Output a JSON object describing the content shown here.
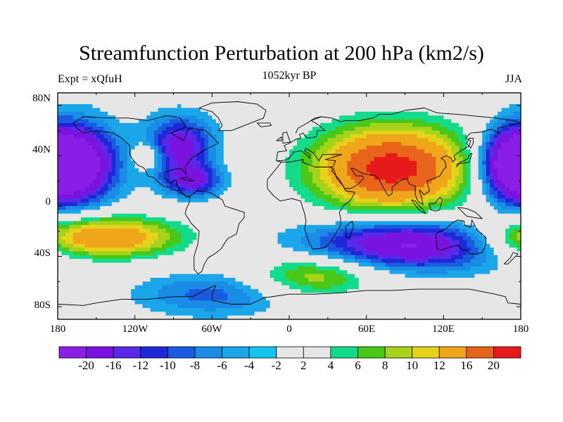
{
  "header": {
    "title": "Streamfunction Perturbation at 200 hPa (km2/s)",
    "left_label": "Expt = xQfuH",
    "center_label": "1052kyr BP",
    "right_label": "JJA"
  },
  "axes": {
    "lat_labels": [
      "80N",
      "40N",
      "0",
      "40S",
      "80S"
    ],
    "lat_values": [
      80,
      40,
      0,
      -40,
      -80
    ],
    "lon_labels": [
      "180",
      "120W",
      "60W",
      "0",
      "60E",
      "120E",
      "180"
    ],
    "lon_values": [
      -180,
      -120,
      -60,
      0,
      60,
      120,
      180
    ]
  },
  "colorbar": {
    "labels": [
      "-20",
      "-16",
      "-12",
      "-10",
      "-8",
      "-6",
      "-4",
      "-2",
      "2",
      "4",
      "6",
      "8",
      "10",
      "12",
      "16",
      "20"
    ],
    "colors": [
      "#8a1ee6",
      "#7a12e0",
      "#5a28e8",
      "#1e28d8",
      "#1a5ae0",
      "#1a8ce6",
      "#1aa6e8",
      "#12c4ee",
      "#e6e6e6",
      "#12dc8c",
      "#4ac81a",
      "#a6d21a",
      "#e6d21a",
      "#f0a61a",
      "#e8641a",
      "#e61a1a"
    ]
  },
  "chart_data": {
    "type": "heatmap",
    "title": "Streamfunction Perturbation at 200 hPa (km2/s)",
    "subtitle": "1052kyr BP",
    "variable": "Streamfunction perturbation at 200 hPa",
    "units": "km2/s",
    "season": "JJA",
    "experiment": "xQfuH",
    "xlim": [
      -180,
      180
    ],
    "ylim": [
      -90,
      90
    ],
    "contour_levels": [
      -20,
      -16,
      -12,
      -10,
      -8,
      -6,
      -4,
      -2,
      2,
      4,
      6,
      8,
      10,
      12,
      16,
      20
    ],
    "features": [
      {
        "name": "Asian anticyclone",
        "lon": 80,
        "lat": 30,
        "value": 22
      },
      {
        "name": "North American low",
        "lon": -85,
        "lat": 48,
        "value": -14
      },
      {
        "name": "Subtropical low (W Atlantic)",
        "lon": -75,
        "lat": 20,
        "value": -12
      },
      {
        "name": "Central Pacific low",
        "lon": -165,
        "lat": 33,
        "value": -20
      },
      {
        "name": "Western Pacific low",
        "lon": 172,
        "lat": 33,
        "value": -18
      },
      {
        "name": "Indian Ocean/Australia low",
        "lon": 95,
        "lat": -30,
        "value": -18
      },
      {
        "name": "South Pacific high",
        "lon": -150,
        "lat": -25,
        "value": 18
      },
      {
        "name": "Eastern Pacific high",
        "lon": -110,
        "lat": 40,
        "value": 8
      },
      {
        "name": "Southern Ocean high",
        "lon": 20,
        "lat": -55,
        "value": 10
      },
      {
        "name": "Antarctic low",
        "lon": -60,
        "lat": -70,
        "value": -7
      }
    ]
  }
}
